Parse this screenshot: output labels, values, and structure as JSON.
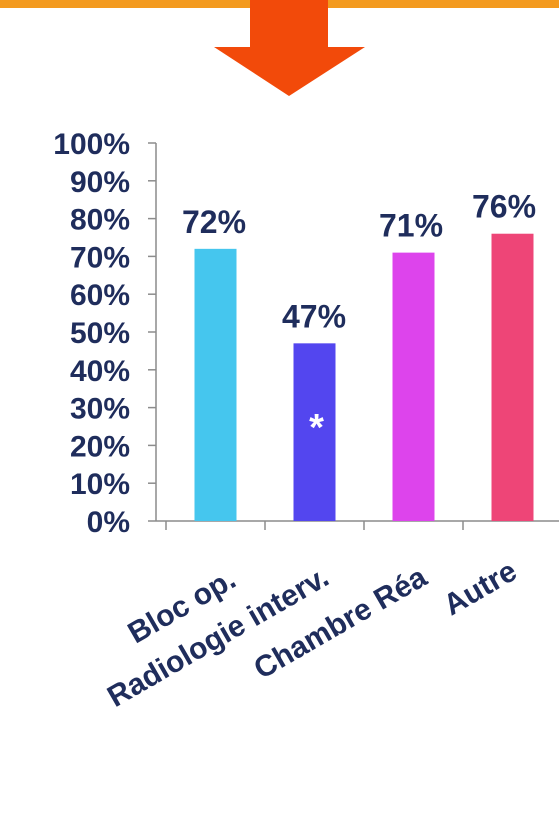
{
  "colors": {
    "top_band": "#f39a1f",
    "arrow": "#f24a0a",
    "text": "#1f2d5c",
    "axis": "#8c8c8c",
    "star": "#ffffff"
  },
  "chart_data": {
    "type": "bar",
    "categories": [
      "Bloc op.",
      "Radiologie interv.",
      "Chambre Réa",
      "Autre"
    ],
    "values": [
      72,
      47,
      71,
      76
    ],
    "data_labels": [
      "72%",
      "47%",
      "71%",
      "76%"
    ],
    "bar_colors": [
      "#45c6ee",
      "#5346ef",
      "#dd44ec",
      "#ee4577"
    ],
    "ylim": [
      0,
      100
    ],
    "yticks": [
      0,
      10,
      20,
      30,
      40,
      50,
      60,
      70,
      80,
      90,
      100
    ],
    "ytick_labels": [
      "0%",
      "10%",
      "20%",
      "30%",
      "40%",
      "50%",
      "60%",
      "70%",
      "80%",
      "90%",
      "100%"
    ],
    "annotation": {
      "category_index": 1,
      "text": "*"
    },
    "grid": false,
    "legend": "none",
    "title": "",
    "xlabel": "",
    "ylabel": ""
  }
}
